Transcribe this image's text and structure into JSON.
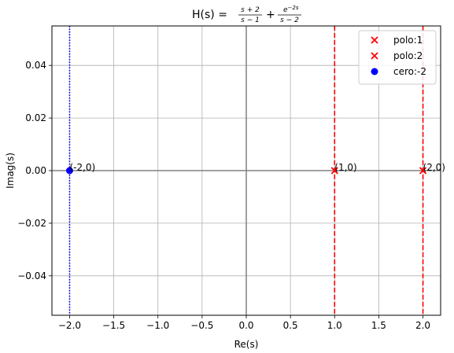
{
  "chart_data": {
    "type": "scatter",
    "title": {
      "prefix": "H(s) = ",
      "term1_num": "s + 2",
      "term1_den": "s − 1",
      "plus": "+",
      "term2_num": "e",
      "term2_num_sup": "−2s",
      "term2_den": "s − 2"
    },
    "xlabel": "Re(s)",
    "ylabel": "Imag(s)",
    "xlim": [
      -2.2,
      2.2
    ],
    "ylim": [
      -0.055,
      0.055
    ],
    "xticks": [
      -2.0,
      -1.5,
      -1.0,
      -0.5,
      0.0,
      0.5,
      1.0,
      1.5,
      2.0
    ],
    "xtick_labels": [
      "−2.0",
      "−1.5",
      "−1.0",
      "−0.5",
      "0.0",
      "0.5",
      "1.0",
      "1.5",
      "2.0"
    ],
    "yticks": [
      -0.04,
      -0.02,
      0.0,
      0.02,
      0.04
    ],
    "ytick_labels": [
      "−0.04",
      "−0.02",
      "0.00",
      "0.02",
      "0.04"
    ],
    "grid": true,
    "legend_position": "top-right",
    "series": [
      {
        "name": "polo:1",
        "marker": "x",
        "color": "#ff0000",
        "points": [
          [
            1,
            0
          ]
        ]
      },
      {
        "name": "polo:2",
        "marker": "x",
        "color": "#ff0000",
        "points": [
          [
            2,
            0
          ]
        ]
      },
      {
        "name": "cero:-2",
        "marker": "o",
        "color": "#0000ff",
        "points": [
          [
            -2,
            0
          ]
        ]
      }
    ],
    "vlines": [
      {
        "x": 1,
        "style": "dashed",
        "color": "#ff0000"
      },
      {
        "x": 2,
        "style": "dashed",
        "color": "#ff0000"
      },
      {
        "x": -2,
        "style": "dotted",
        "color": "#0000ff"
      }
    ],
    "annotations": [
      {
        "text": "(1,0)",
        "x": 1,
        "y": 0
      },
      {
        "text": "(2,0)",
        "x": 2,
        "y": 0
      },
      {
        "text": "(-2,0)",
        "x": -2,
        "y": 0
      }
    ],
    "axis_line_color": "#808080"
  }
}
